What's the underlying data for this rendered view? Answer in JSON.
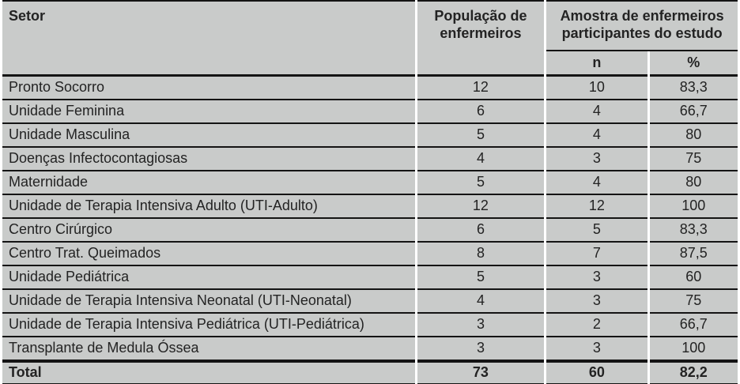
{
  "table": {
    "header": {
      "setor": "Setor",
      "populacao_line1": "População de",
      "populacao_line2": "enfermeiros",
      "amostra_line1": "Amostra de enfermeiros",
      "amostra_line2": "participantes do estudo",
      "n": "n",
      "pct": "%"
    },
    "rows": [
      {
        "setor": "Pronto Socorro",
        "populacao": "12",
        "n": "10",
        "pct": "83,3"
      },
      {
        "setor": "Unidade Feminina",
        "populacao": "6",
        "n": "4",
        "pct": "66,7"
      },
      {
        "setor": "Unidade Masculina",
        "populacao": "5",
        "n": "4",
        "pct": "80"
      },
      {
        "setor": "Doenças Infectocontagiosas",
        "populacao": "4",
        "n": "3",
        "pct": "75"
      },
      {
        "setor": "Maternidade",
        "populacao": "5",
        "n": "4",
        "pct": "80"
      },
      {
        "setor": "Unidade de Terapia Intensiva Adulto (UTI-Adulto)",
        "populacao": "12",
        "n": "12",
        "pct": "100"
      },
      {
        "setor": "Centro Cirúrgico",
        "populacao": "6",
        "n": "5",
        "pct": "83,3"
      },
      {
        "setor": "Centro Trat. Queimados",
        "populacao": "8",
        "n": "7",
        "pct": "87,5"
      },
      {
        "setor": "Unidade Pediátrica",
        "populacao": "5",
        "n": "3",
        "pct": "60"
      },
      {
        "setor": "Unidade de Terapia Intensiva Neonatal (UTI-Neonatal)",
        "populacao": "4",
        "n": "3",
        "pct": "75"
      },
      {
        "setor": "Unidade de Terapia Intensiva Pediátrica (UTI-Pediátrica)",
        "populacao": "3",
        "n": "2",
        "pct": "66,7"
      },
      {
        "setor": "Transplante de Medula Óssea",
        "populacao": "3",
        "n": "3",
        "pct": "100"
      }
    ],
    "total": {
      "label": "Total",
      "populacao": "73",
      "n": "60",
      "pct": "82,2"
    }
  },
  "chart_data": {
    "type": "table",
    "title": "",
    "columns": [
      "Setor",
      "População de enfermeiros",
      "Amostra n",
      "Amostra %"
    ],
    "rows_values": [
      [
        "Pronto Socorro",
        12,
        10,
        83.3
      ],
      [
        "Unidade Feminina",
        6,
        4,
        66.7
      ],
      [
        "Unidade Masculina",
        5,
        4,
        80
      ],
      [
        "Doenças Infectocontagiosas",
        4,
        3,
        75
      ],
      [
        "Maternidade",
        5,
        4,
        80
      ],
      [
        "Unidade de Terapia Intensiva Adulto (UTI-Adulto)",
        12,
        12,
        100
      ],
      [
        "Centro Cirúrgico",
        6,
        5,
        83.3
      ],
      [
        "Centro Trat. Queimados",
        8,
        7,
        87.5
      ],
      [
        "Unidade Pediátrica",
        5,
        3,
        60
      ],
      [
        "Unidade de Terapia Intensiva Neonatal (UTI-Neonatal)",
        4,
        3,
        75
      ],
      [
        "Unidade de Terapia Intensiva Pediátrica (UTI-Pediátrica)",
        3,
        2,
        66.7
      ],
      [
        "Transplante de Medula Óssea",
        3,
        3,
        100
      ],
      [
        "Total",
        73,
        60,
        82.2
      ]
    ]
  },
  "colors": {
    "cell_background": "#c9cbca",
    "line": "#141414",
    "text": "#232323"
  }
}
